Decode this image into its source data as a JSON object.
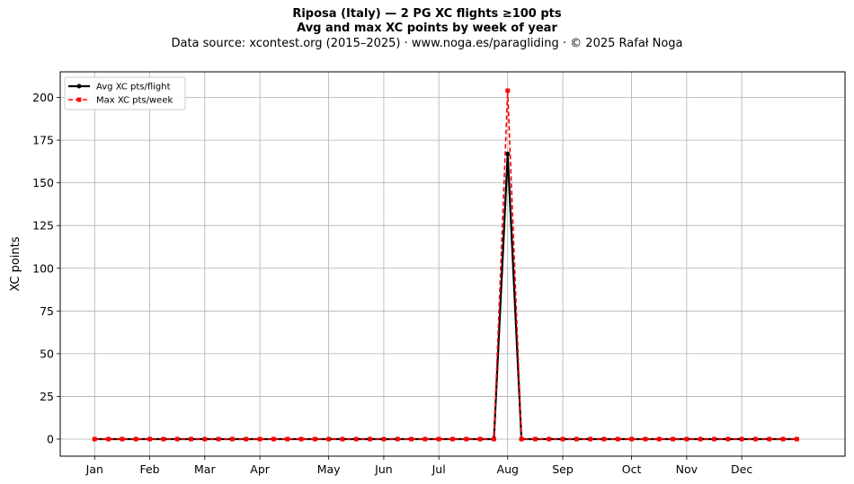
{
  "titles": {
    "line1": "Riposa (Italy)  —  2 PG XC flights ≥100 pts",
    "line2": "Avg and max XC points by week of year",
    "line3": "Data source: xcontest.org (2015–2025)  ·  www.noga.es/paragliding  ·  © 2025 Rafał Noga"
  },
  "chart_data": {
    "type": "line",
    "title": "Riposa (Italy)  —  2 PG XC flights ≥100 pts",
    "subtitle": "Avg and max XC points by week of year",
    "xlabel": "",
    "ylabel": "XC points",
    "xlim": [
      -2.5,
      54.5
    ],
    "ylim": [
      -10,
      215
    ],
    "grid": true,
    "legend_position": "top-left",
    "x_tick_values": [
      0,
      4,
      8,
      12,
      17,
      21,
      25,
      30,
      34,
      39,
      43,
      47
    ],
    "x_tick_labels": [
      "Jan",
      "Feb",
      "Mar",
      "Apr",
      "May",
      "Jun",
      "Jul",
      "Aug",
      "Sep",
      "Oct",
      "Nov",
      "Dec"
    ],
    "y_ticks": [
      0,
      25,
      50,
      75,
      100,
      125,
      150,
      175,
      200
    ],
    "x": [
      0,
      1,
      2,
      3,
      4,
      5,
      6,
      7,
      8,
      9,
      10,
      11,
      12,
      13,
      14,
      15,
      16,
      17,
      18,
      19,
      20,
      21,
      22,
      23,
      24,
      25,
      26,
      27,
      28,
      29,
      30,
      31,
      32,
      33,
      34,
      35,
      36,
      37,
      38,
      39,
      40,
      41,
      42,
      43,
      44,
      45,
      46,
      47,
      48,
      49,
      50,
      51
    ],
    "series": [
      {
        "name": "Avg XC pts/flight",
        "color": "#000000",
        "style": "solid",
        "marker": "circle",
        "values": [
          0,
          0,
          0,
          0,
          0,
          0,
          0,
          0,
          0,
          0,
          0,
          0,
          0,
          0,
          0,
          0,
          0,
          0,
          0,
          0,
          0,
          0,
          0,
          0,
          0,
          0,
          0,
          0,
          0,
          0,
          167,
          0,
          0,
          0,
          0,
          0,
          0,
          0,
          0,
          0,
          0,
          0,
          0,
          0,
          0,
          0,
          0,
          0,
          0,
          0,
          0,
          0
        ]
      },
      {
        "name": "Max XC pts/week",
        "color": "#ff0000",
        "style": "dashed",
        "marker": "square",
        "values": [
          0,
          0,
          0,
          0,
          0,
          0,
          0,
          0,
          0,
          0,
          0,
          0,
          0,
          0,
          0,
          0,
          0,
          0,
          0,
          0,
          0,
          0,
          0,
          0,
          0,
          0,
          0,
          0,
          0,
          0,
          204,
          0,
          0,
          0,
          0,
          0,
          0,
          0,
          0,
          0,
          0,
          0,
          0,
          0,
          0,
          0,
          0,
          0,
          0,
          0,
          0,
          0
        ]
      }
    ]
  }
}
